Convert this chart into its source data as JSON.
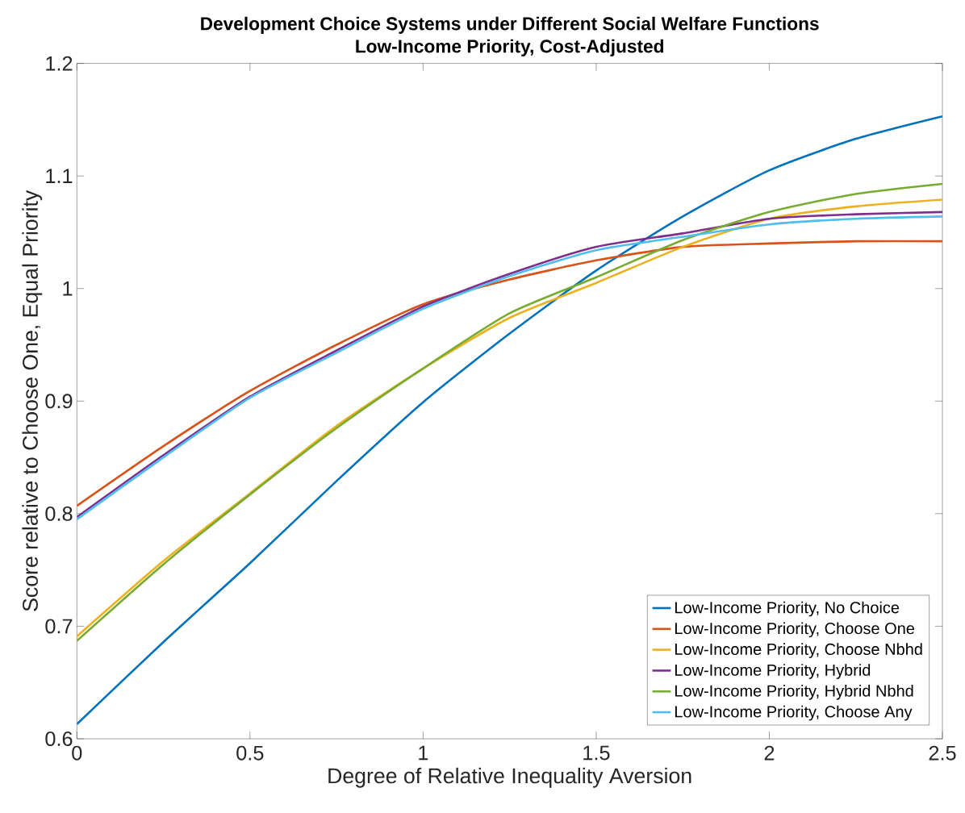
{
  "chart_data": {
    "type": "line",
    "title": "Development Choice Systems under Different Social Welfare Functions",
    "subtitle": "Low-Income Priority, Cost-Adjusted",
    "xlabel": "Degree of Relative Inequality Aversion",
    "ylabel": "Score relative to Choose One, Equal Priority",
    "x": [
      0,
      0.25,
      0.5,
      0.75,
      1,
      1.25,
      1.5,
      1.75,
      2,
      2.25,
      2.5
    ],
    "series": [
      {
        "name": "Low-Income Priority, No Choice",
        "color": "#0072bd",
        "values": [
          0.613,
          0.686,
          0.756,
          0.829,
          0.899,
          0.96,
          1.016,
          1.064,
          1.105,
          1.133,
          1.153
        ]
      },
      {
        "name": "Low-Income Priority, Choose One",
        "color": "#d95319",
        "values": [
          0.807,
          0.86,
          0.909,
          0.95,
          0.986,
          1.008,
          1.025,
          1.037,
          1.04,
          1.042,
          1.042
        ]
      },
      {
        "name": "Low-Income Priority, Choose Nbhd",
        "color": "#edb120",
        "values": [
          0.691,
          0.758,
          0.818,
          0.878,
          0.929,
          0.974,
          1.005,
          1.037,
          1.062,
          1.073,
          1.079
        ]
      },
      {
        "name": "Low-Income Priority, Hybrid",
        "color": "#7e2f8e",
        "values": [
          0.797,
          0.852,
          0.904,
          0.945,
          0.984,
          1.013,
          1.037,
          1.049,
          1.062,
          1.066,
          1.068
        ]
      },
      {
        "name": "Low-Income Priority, Hybrid Nbhd",
        "color": "#77ac30",
        "values": [
          0.687,
          0.755,
          0.817,
          0.876,
          0.929,
          0.978,
          1.01,
          1.043,
          1.068,
          1.084,
          1.093
        ]
      },
      {
        "name": "Low-Income Priority, Choose Any",
        "color": "#4dbeee",
        "values": [
          0.795,
          0.85,
          0.903,
          0.943,
          0.982,
          1.011,
          1.034,
          1.046,
          1.057,
          1.062,
          1.064
        ]
      }
    ],
    "xlim": [
      0,
      2.5
    ],
    "ylim": [
      0.6,
      1.2
    ],
    "xticks": [
      0,
      0.5,
      1,
      1.5,
      2,
      2.5
    ],
    "yticks": [
      0.6,
      0.7,
      0.8,
      0.9,
      1,
      1.1,
      1.2
    ],
    "grid": false,
    "legend": "bottom right",
    "marker": "none",
    "line_style": "solid"
  }
}
